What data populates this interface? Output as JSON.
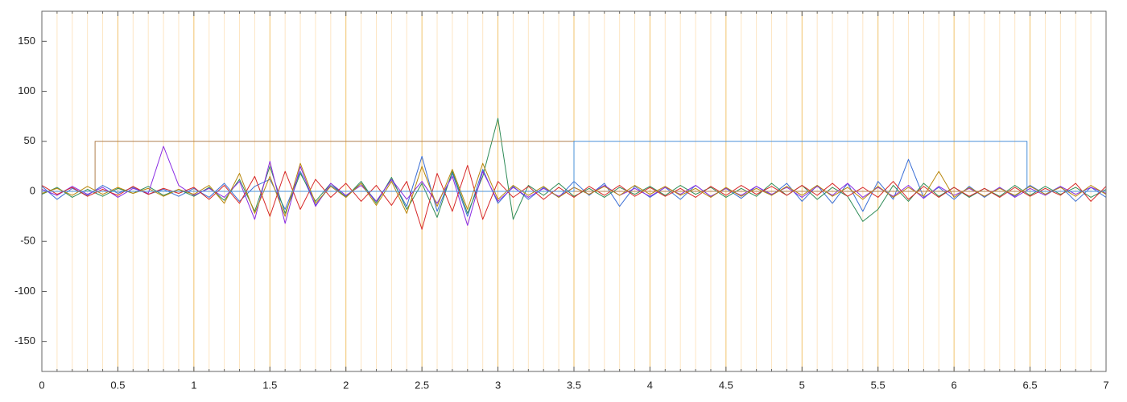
{
  "chart_data": {
    "type": "line",
    "xlim": [
      0,
      7
    ],
    "ylim": [
      -180,
      180
    ],
    "xticks": [
      0,
      0.5,
      1,
      1.5,
      2,
      2.5,
      3,
      3.5,
      4,
      4.5,
      5,
      5.5,
      6,
      6.5,
      7
    ],
    "yticks": [
      -150,
      -100,
      -50,
      0,
      50,
      100,
      150
    ],
    "grid": true,
    "minor_grid": true,
    "grid_color": "#f2c36b",
    "minor_grid_color": "#fde6c4",
    "x": [
      0,
      0.1,
      0.2,
      0.3,
      0.4,
      0.5,
      0.6,
      0.7,
      0.8,
      0.9,
      1,
      1.1,
      1.2,
      1.3,
      1.4,
      1.5,
      1.6,
      1.7,
      1.8,
      1.9,
      2,
      2.1,
      2.2,
      2.3,
      2.4,
      2.5,
      2.6,
      2.7,
      2.8,
      2.9,
      3,
      3.1,
      3.2,
      3.3,
      3.4,
      3.5,
      3.6,
      3.7,
      3.8,
      3.9,
      4,
      4.1,
      4.2,
      4.3,
      4.4,
      4.5,
      4.6,
      4.7,
      4.8,
      4.9,
      5,
      5.1,
      5.2,
      5.3,
      5.4,
      5.5,
      5.6,
      5.7,
      5.8,
      5.9,
      6,
      6.1,
      6.2,
      6.3,
      6.4,
      6.5,
      6.6,
      6.7,
      6.8,
      6.9,
      7
    ],
    "series": [
      {
        "color": "#3b6fd6",
        "values": [
          5,
          -8,
          3,
          -4,
          6,
          -2,
          4,
          -3,
          2,
          -5,
          3,
          -6,
          8,
          -10,
          5,
          12,
          -18,
          20,
          -14,
          6,
          -5,
          8,
          -10,
          12,
          -15,
          35,
          -20,
          18,
          -25,
          22,
          -12,
          5,
          -8,
          4,
          -6,
          10,
          -4,
          8,
          -15,
          5,
          -6,
          4,
          -8,
          6,
          -5,
          3,
          -7,
          5,
          -4,
          8,
          -10,
          6,
          -12,
          8,
          -20,
          10,
          -8,
          32,
          -6,
          4,
          -8,
          5,
          -6,
          4,
          -5,
          6,
          -3,
          5,
          -10,
          4,
          -6
        ]
      },
      {
        "color": "#2e8b57",
        "values": [
          -3,
          4,
          -6,
          2,
          -5,
          3,
          -2,
          5,
          -4,
          2,
          -5,
          4,
          -9,
          12,
          -20,
          25,
          -22,
          18,
          -10,
          8,
          -6,
          10,
          -12,
          14,
          -18,
          8,
          -26,
          20,
          -22,
          15,
          73,
          -28,
          6,
          -4,
          8,
          -5,
          3,
          -6,
          4,
          -3,
          5,
          -4,
          6,
          -3,
          4,
          -6,
          3,
          -5,
          8,
          -4,
          6,
          -8,
          4,
          -5,
          -30,
          -18,
          6,
          -10,
          8,
          -5,
          4,
          -6,
          3,
          -5,
          6,
          -4,
          5,
          -3,
          4,
          -6,
          2
        ]
      },
      {
        "color": "#8a2be2",
        "values": [
          2,
          -4,
          5,
          -3,
          4,
          -6,
          3,
          -2,
          45,
          6,
          -4,
          3,
          -6,
          10,
          -28,
          30,
          -32,
          25,
          -15,
          8,
          -4,
          6,
          -10,
          12,
          -8,
          10,
          -12,
          15,
          -34,
          20,
          -10,
          4,
          -6,
          3,
          -5,
          4,
          -3,
          6,
          -4,
          3,
          -5,
          4,
          -3,
          6,
          -5,
          3,
          -4,
          5,
          -3,
          4,
          -6,
          5,
          -4,
          8,
          -6,
          4,
          -5,
          6,
          -7,
          5,
          -4,
          3,
          -5,
          4,
          -6,
          3,
          -4,
          5,
          -3,
          4,
          -2
        ]
      },
      {
        "color": "#d62728",
        "values": [
          6,
          -3,
          4,
          -5,
          2,
          -4,
          5,
          -3,
          3,
          -2,
          4,
          -8,
          6,
          -12,
          15,
          -25,
          20,
          -18,
          12,
          -6,
          8,
          -10,
          6,
          -14,
          10,
          -38,
          18,
          -20,
          26,
          -28,
          10,
          -6,
          5,
          -8,
          4,
          -6,
          5,
          -4,
          6,
          -5,
          4,
          -5,
          3,
          -6,
          5,
          -4,
          6,
          -3,
          5,
          -4,
          6,
          -4,
          8,
          -5,
          4,
          -6,
          10,
          -8,
          5,
          -6,
          4,
          -5,
          3,
          -6,
          4,
          -5,
          3,
          -4,
          8,
          -10,
          5
        ]
      },
      {
        "color": "#b8860b",
        "values": [
          -2,
          3,
          -4,
          5,
          -3,
          4,
          -2,
          3,
          -5,
          2,
          -3,
          6,
          -12,
          18,
          -22,
          15,
          -25,
          28,
          -12,
          5,
          -6,
          8,
          -14,
          10,
          -22,
          25,
          -15,
          22,
          -18,
          28,
          -8,
          6,
          -4,
          5,
          -6,
          4,
          -3,
          5,
          -4,
          6,
          -3,
          5,
          -4,
          3,
          -6,
          4,
          -5,
          3,
          -4,
          5,
          -4,
          6,
          -5,
          4,
          -8,
          5,
          -6,
          4,
          -5,
          20,
          -6,
          4,
          -5,
          3,
          -4,
          5,
          -3,
          4,
          -5,
          6,
          -3
        ]
      },
      {
        "color": "#b08050",
        "x": [
          0,
          0.35,
          0.35,
          3.5,
          3.5,
          7
        ],
        "values": [
          0,
          0,
          50,
          50,
          0,
          0
        ]
      },
      {
        "color": "#4a90d9",
        "x": [
          0,
          3.5,
          3.5,
          6.48,
          6.48,
          7
        ],
        "values": [
          0,
          0,
          50,
          50,
          0,
          0
        ]
      }
    ]
  }
}
